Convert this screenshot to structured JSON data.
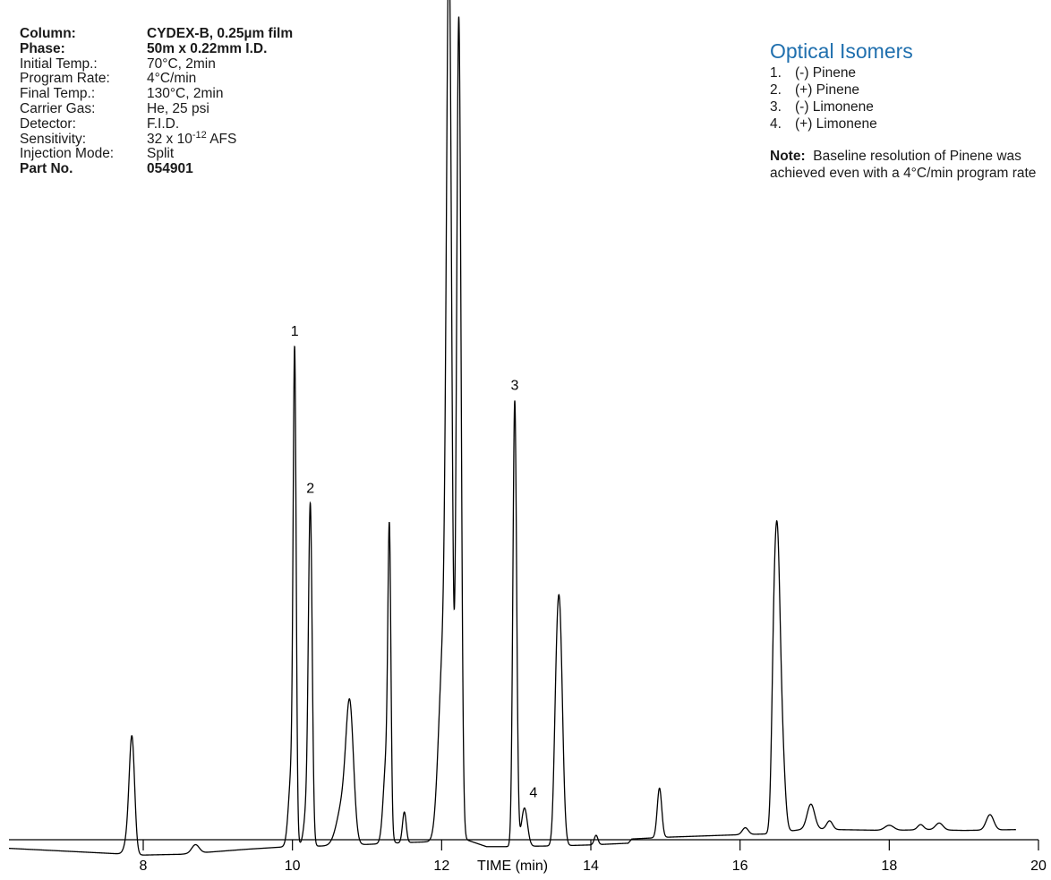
{
  "params": [
    {
      "label": "Column:",
      "value": "CYDEX-B, 0.25µm film",
      "bold": true
    },
    {
      "label": "Phase:",
      "value": "50m x 0.22mm I.D.",
      "bold": true
    },
    {
      "label": "Initial Temp.:",
      "value": "70°C, 2min",
      "bold": false
    },
    {
      "label": "Program Rate:",
      "value": "4°C/min",
      "bold": false
    },
    {
      "label": "Final Temp.:",
      "value": "130°C, 2min",
      "bold": false
    },
    {
      "label": "Carrier Gas:",
      "value": "He, 25 psi",
      "bold": false
    },
    {
      "label": "Detector:",
      "value": "F.I.D.",
      "bold": false
    },
    {
      "label": "Sensitivity:",
      "value": "32 x 10",
      "sup": "-12",
      "value_after": " AFS",
      "bold": false
    },
    {
      "label": "Injection Mode:",
      "value": "Split",
      "bold": false
    },
    {
      "label": "Part No.",
      "value": "054901",
      "bold": true
    }
  ],
  "legend": {
    "title": "Optical Isomers",
    "items": [
      {
        "num": "1.",
        "name": "(-) Pinene"
      },
      {
        "num": "2.",
        "name": "(+) Pinene"
      },
      {
        "num": "3.",
        "name": "(-) Limonene"
      },
      {
        "num": "4.",
        "name": "(+) Limonene"
      }
    ],
    "note_label": "Note:",
    "note_text": "Baseline resolution of Pinene was achieved even with a 4°C/min program rate"
  },
  "chart_data": {
    "type": "line",
    "xlabel": "TIME (min)",
    "xlim": [
      6.2,
      20
    ],
    "ylim": [
      0,
      100
    ],
    "xticks": [
      8,
      10,
      12,
      14,
      16,
      18,
      20
    ],
    "grid": false,
    "baseline": [
      [
        6.2,
        1.3
      ],
      [
        7.8,
        0.6
      ],
      [
        7.95,
        0.5
      ],
      [
        8.5,
        0.6
      ],
      [
        9.4,
        1.2
      ],
      [
        9.95,
        1.5
      ],
      [
        10.6,
        1.6
      ],
      [
        11.1,
        1.8
      ],
      [
        11.6,
        2.0
      ],
      [
        11.95,
        2.1
      ],
      [
        12.3,
        2.4
      ],
      [
        12.6,
        1.5
      ],
      [
        12.9,
        1.5
      ],
      [
        13.6,
        1.6
      ],
      [
        14.0,
        1.7
      ],
      [
        14.5,
        1.9
      ],
      [
        14.55,
        2.4
      ],
      [
        15.0,
        2.6
      ],
      [
        16.0,
        2.9
      ],
      [
        16.4,
        3.0
      ],
      [
        16.9,
        3.6
      ],
      [
        17.3,
        3.5
      ],
      [
        18.0,
        3.4
      ],
      [
        18.5,
        3.5
      ],
      [
        19.0,
        3.4
      ],
      [
        19.7,
        3.5
      ]
    ],
    "peaks": [
      {
        "label": "",
        "rt": 7.85,
        "height": 11.4,
        "w": 0.035
      },
      {
        "label": "",
        "rt": 7.82,
        "height": 3.0,
        "w": 0.05
      },
      {
        "label": "",
        "rt": 8.7,
        "height": 1.0,
        "w": 0.05
      },
      {
        "label": "1",
        "rt": 10.03,
        "height": 53.2,
        "w": 0.02
      },
      {
        "label": "",
        "rt": 9.99,
        "height": 9.0,
        "w": 0.04
      },
      {
        "label": "2",
        "rt": 10.24,
        "height": 37.2,
        "w": 0.025
      },
      {
        "label": "",
        "rt": 10.2,
        "height": 5.0,
        "w": 0.04
      },
      {
        "label": "",
        "rt": 10.77,
        "height": 14.4,
        "w": 0.05
      },
      {
        "label": "",
        "rt": 10.68,
        "height": 5.0,
        "w": 0.08
      },
      {
        "label": "",
        "rt": 11.3,
        "height": 31.5,
        "w": 0.02
      },
      {
        "label": "",
        "rt": 11.26,
        "height": 10.0,
        "w": 0.04
      },
      {
        "label": "",
        "rt": 11.5,
        "height": 3.6,
        "w": 0.025
      },
      {
        "label": "",
        "rt": 12.1,
        "height": 96.6,
        "w": 0.035
      },
      {
        "label": "",
        "rt": 12.23,
        "height": 96.4,
        "w": 0.03
      },
      {
        "label": "",
        "rt": 12.02,
        "height": 22.0,
        "w": 0.06
      },
      {
        "label": "3",
        "rt": 12.98,
        "height": 52.3,
        "w": 0.025
      },
      {
        "label": "4",
        "rt": 13.11,
        "height": 4.5,
        "w": 0.04
      },
      {
        "label": "",
        "rt": 13.58,
        "height": 27.0,
        "w": 0.04
      },
      {
        "label": "",
        "rt": 13.53,
        "height": 8.0,
        "w": 0.03
      },
      {
        "label": "",
        "rt": 14.07,
        "height": 1.1,
        "w": 0.025
      },
      {
        "label": "",
        "rt": 14.92,
        "height": 5.8,
        "w": 0.03
      },
      {
        "label": "",
        "rt": 16.07,
        "height": 0.8,
        "w": 0.04
      },
      {
        "label": "",
        "rt": 16.5,
        "height": 29.0,
        "w": 0.035
      },
      {
        "label": "",
        "rt": 16.45,
        "height": 16.0,
        "w": 0.03
      },
      {
        "label": "",
        "rt": 16.56,
        "height": 10.0,
        "w": 0.04
      },
      {
        "label": "",
        "rt": 16.95,
        "height": 2.9,
        "w": 0.05
      },
      {
        "label": "",
        "rt": 17.2,
        "height": 1.0,
        "w": 0.04
      },
      {
        "label": "",
        "rt": 18.0,
        "height": 0.6,
        "w": 0.06
      },
      {
        "label": "",
        "rt": 18.42,
        "height": 0.6,
        "w": 0.04
      },
      {
        "label": "",
        "rt": 18.67,
        "height": 0.8,
        "w": 0.05
      },
      {
        "label": "",
        "rt": 19.35,
        "height": 1.8,
        "w": 0.05
      }
    ]
  }
}
